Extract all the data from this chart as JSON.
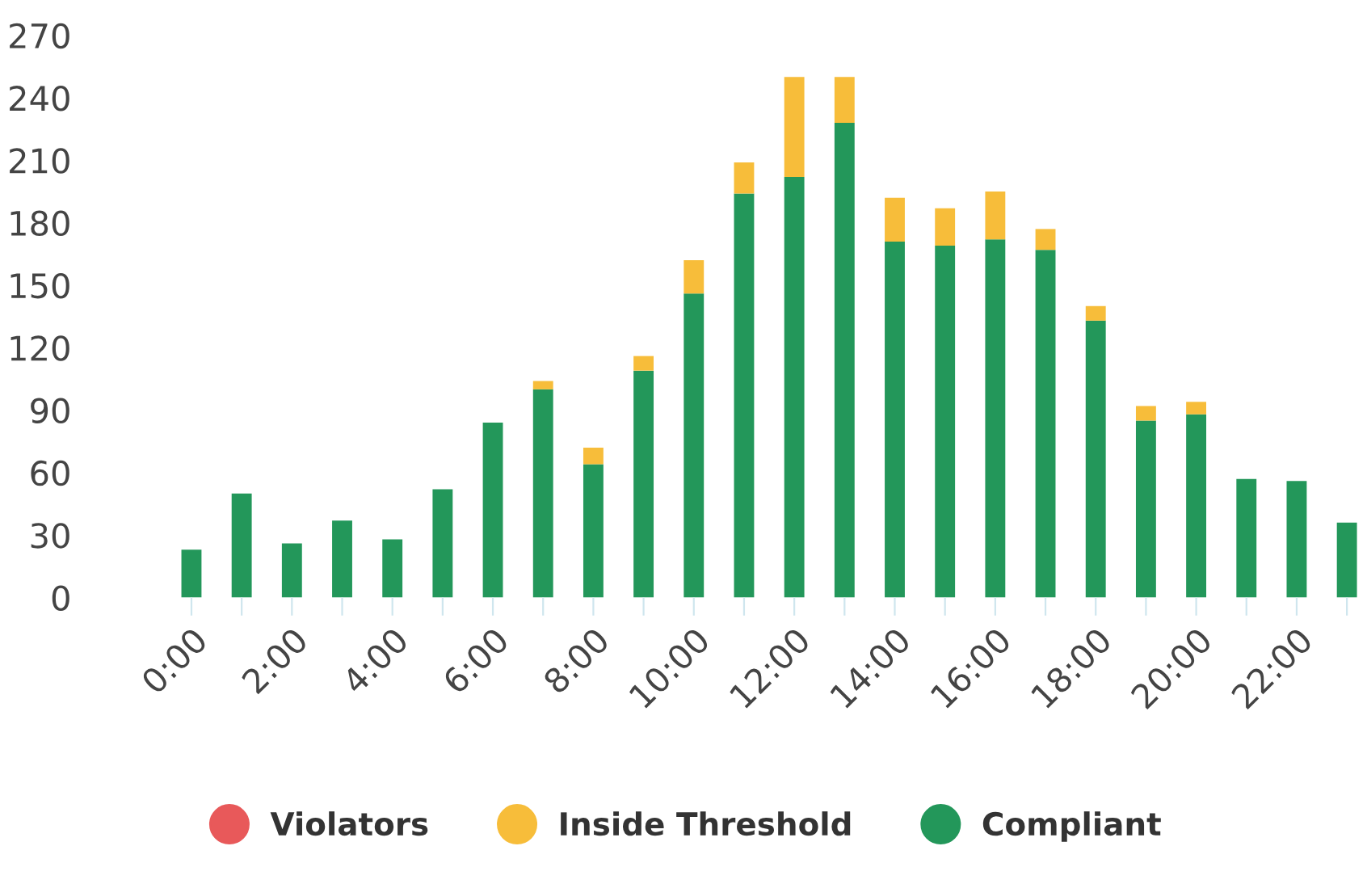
{
  "chart_data": {
    "type": "bar",
    "stacked": true,
    "categories": [
      "0:00",
      null,
      "2:00",
      null,
      "4:00",
      null,
      "6:00",
      null,
      "8:00",
      null,
      "10:00",
      null,
      "12:00",
      null,
      "14:00",
      null,
      "16:00",
      null,
      "18:00",
      null,
      "20:00",
      null,
      "22:00",
      null
    ],
    "series": [
      {
        "name": "Compliant",
        "color": "#23975a",
        "values": [
          23,
          50,
          26,
          37,
          28,
          52,
          84,
          100,
          64,
          109,
          146,
          194,
          202,
          228,
          171,
          169,
          172,
          167,
          133,
          85,
          88,
          57,
          56,
          36
        ]
      },
      {
        "name": "Inside Threshold",
        "color": "#f7bd3a",
        "values": [
          0,
          0,
          0,
          0,
          0,
          0,
          0,
          4,
          8,
          7,
          16,
          15,
          48,
          22,
          21,
          18,
          23,
          10,
          7,
          7,
          6,
          0,
          0,
          0
        ]
      },
      {
        "name": "Violators",
        "color": "#e8595a",
        "values": [
          0,
          0,
          0,
          0,
          0,
          0,
          0,
          0,
          0,
          0,
          0,
          0,
          0,
          0,
          0,
          0,
          0,
          0,
          0,
          0,
          0,
          0,
          0,
          0
        ]
      }
    ],
    "ylim": [
      0,
      270
    ],
    "yticks": [
      0,
      30,
      60,
      90,
      120,
      150,
      180,
      210,
      240,
      270
    ],
    "grid": false,
    "legend": "bottom",
    "marker": "circle"
  }
}
